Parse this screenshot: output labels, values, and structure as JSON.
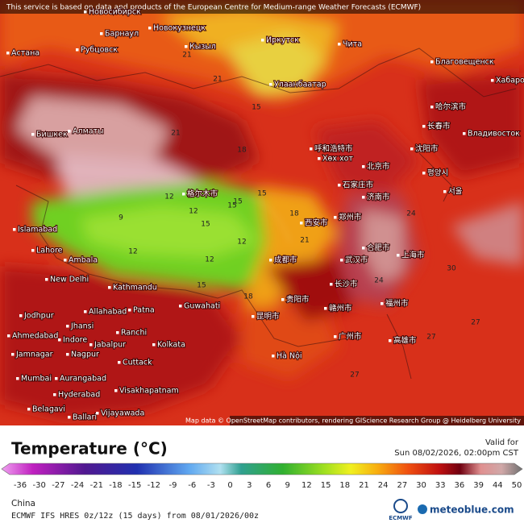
{
  "header": {
    "notice": "This service is based on data and products of the European Centre for Medium-range Weather Forecasts (ECMWF)"
  },
  "map": {
    "attribution": "Map data © OpenStreetMap contributors, rendering GIScience Research Group @ Heidelberg University",
    "cities": [
      "Новосибирск",
      "Барнаул",
      "Новокузнецк",
      "Астана",
      "Рубцовск",
      "Кызыл",
      "Иркутск",
      "Чита",
      "Улаанбаатар",
      "Благовещенск",
      "Хабаровск",
      "Бишкек",
      "Алматы",
      "哈尔滨市",
      "长春市",
      "Владивосток",
      "呼和浩特市",
      "Хөх хот",
      "沈阳市",
      "北京市",
      "평양시",
      "石家庄市",
      "서울",
      "格尔木市",
      "济南市",
      "郑州市",
      "西安市",
      "Islamabad",
      "Lahore",
      "合肥市",
      "上海市",
      "Ambala",
      "武汉市",
      "New Delhi",
      "成都市",
      "长沙市",
      "Kathmandu",
      "Guwahati",
      "贵阳市",
      "赣州市",
      "Jodhpur",
      "Allahabad",
      "Patna",
      "昆明市",
      "福州市",
      "Jhansi",
      "Ahmedabad",
      "Ranchi",
      "Indore",
      "Jabalpur",
      "Kolkata",
      "广州市",
      "高雄市",
      "Jamnagar",
      "Nagpur",
      "Hà Nội",
      "Cuttack",
      "Mumbai",
      "Aurangabad",
      "Hyderabad",
      "Visakhapatnam",
      "Belagavi",
      "Ballari",
      "Vijayawada"
    ],
    "contour_labels": [
      "21",
      "21",
      "15",
      "21",
      "18",
      "15",
      "12",
      "15",
      "12",
      "15",
      "12",
      "9",
      "12",
      "12",
      "15",
      "18",
      "21",
      "27",
      "30",
      "27",
      "24",
      "24",
      "27",
      "18",
      "15"
    ]
  },
  "legend": {
    "title": "Temperature (°C)",
    "ticks": [
      -36,
      -30,
      -27,
      -24,
      -21,
      -18,
      -15,
      -12,
      -9,
      -6,
      -3,
      0,
      3,
      6,
      9,
      12,
      15,
      18,
      21,
      24,
      27,
      30,
      33,
      36,
      39,
      44,
      50
    ]
  },
  "valid": {
    "label": "Valid for",
    "time": "Sun 08/02/2026, 02:00pm CST"
  },
  "footer": {
    "region": "China",
    "model": "ECMWF IFS HRES 0z/12z (15 days) from 08/01/2026/00z",
    "logo_ecmwf": "ECMWF",
    "logo_meteoblue": "meteoblue.com"
  }
}
